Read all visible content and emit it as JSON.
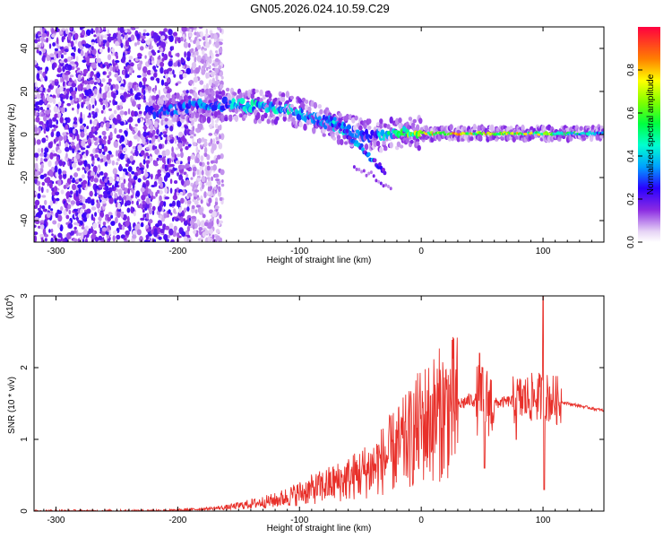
{
  "title": "GN05.2026.024.10.59.C29",
  "colors": {
    "snr_line": "#e8302a",
    "background": "#ffffff",
    "axis": "#000000"
  },
  "chart_data": [
    {
      "type": "heatmap",
      "title": "GN05.2026.024.10.59.C29",
      "xlabel": "Height of straight line (km)",
      "ylabel": "Frequency (Hz)",
      "xlim": [
        -318,
        150
      ],
      "ylim": [
        -50,
        50
      ],
      "x_ticks": [
        -300,
        -200,
        -100,
        0,
        100
      ],
      "y_ticks": [
        -40,
        -20,
        0,
        20,
        40
      ],
      "x_tick_labels": [
        "-300",
        "-200",
        "-100",
        "0",
        "100"
      ],
      "y_tick_labels": [
        "-40",
        "-20",
        "0",
        "20",
        "40"
      ],
      "colorbar": {
        "label": "Normalized spectral amplitude",
        "range": [
          0,
          1
        ],
        "ticks": [
          0.0,
          0.2,
          0.4,
          0.6,
          0.8
        ],
        "tick_labels": [
          "0.0",
          "0.2",
          "0.4",
          "0.6",
          "0.8"
        ]
      },
      "ridge": {
        "description_points_x_km": [
          -220,
          -190,
          -160,
          -130,
          -110,
          -90,
          -75,
          -60,
          -50,
          -40,
          -30,
          -10,
          0,
          30,
          60,
          100,
          150
        ],
        "frequency_hz": [
          10,
          13,
          14,
          13,
          12,
          8,
          5,
          2,
          0,
          -1,
          0,
          1,
          0.5,
          0.5,
          0.5,
          0.5,
          0.5
        ],
        "max_amplitude": [
          0.3,
          0.4,
          0.45,
          0.5,
          0.5,
          0.45,
          0.45,
          0.4,
          0.4,
          0.35,
          0.5,
          0.7,
          0.85,
          0.9,
          0.85,
          0.8,
          0.4
        ]
      },
      "noise_region_x_km": [
        -318,
        -175
      ]
    },
    {
      "type": "line",
      "xlabel": "Height of straight line (km)",
      "ylabel": "SNR (10 * v/v)",
      "y_scale_label": "(x10",
      "y_scale_exponent": "4",
      "xlim": [
        -318,
        150
      ],
      "ylim": [
        0,
        3
      ],
      "x_ticks": [
        -300,
        -200,
        -100,
        0,
        100
      ],
      "y_ticks": [
        0,
        1,
        2,
        3
      ],
      "x_tick_labels": [
        "-300",
        "-200",
        "-100",
        "0",
        "100"
      ],
      "y_tick_labels": [
        "0",
        "1",
        "2",
        "3"
      ],
      "series": [
        {
          "name": "SNR",
          "x": [
            -318,
            -250,
            -200,
            -160,
            -140,
            -120,
            -100,
            -80,
            -60,
            -40,
            -25,
            -10,
            0,
            20,
            40,
            50,
            60,
            80,
            100,
            110,
            120,
            150
          ],
          "y": [
            0.0,
            0.0,
            0.01,
            0.05,
            0.1,
            0.15,
            0.25,
            0.35,
            0.45,
            0.6,
            0.8,
            1.0,
            1.2,
            1.4,
            1.55,
            1.55,
            1.5,
            1.55,
            1.6,
            1.55,
            1.5,
            1.4
          ]
        }
      ],
      "spikes": [
        {
          "x": 48,
          "y": 2.2
        },
        {
          "x": 52,
          "y": 0.6
        },
        {
          "x": 100,
          "y": 3.0
        },
        {
          "x": 101,
          "y": 0.3
        },
        {
          "x": 78,
          "y": 1.0
        }
      ]
    }
  ]
}
